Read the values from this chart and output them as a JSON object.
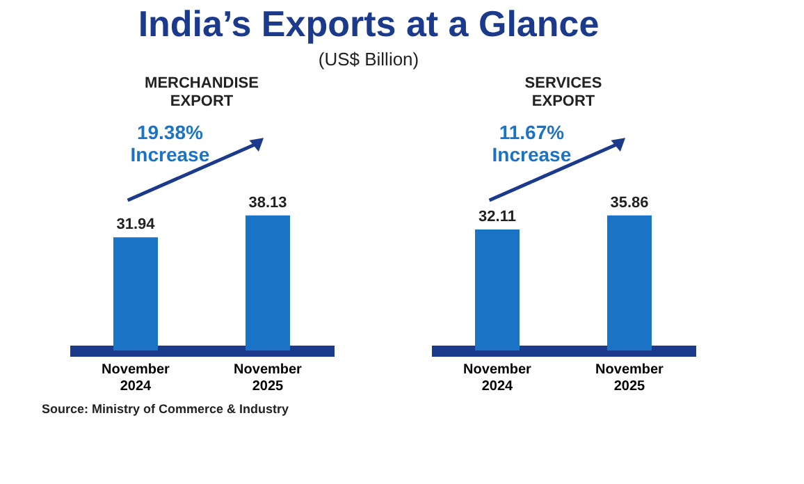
{
  "chart_data": [
    {
      "type": "other",
      "title": "India’s Exports at a Glance",
      "subtitle": "(US$ Billion)",
      "annotations": [
        "Source: Ministry of Commerce & Industry"
      ]
    },
    {
      "type": "bar",
      "title": "MERCHANDISE EXPORT",
      "categories": [
        "November 2024",
        "November 2025"
      ],
      "values": [
        31.94,
        38.13
      ],
      "color": "#1a73c4",
      "data_labels": true,
      "annotations": [
        "19.38% Increase"
      ]
    },
    {
      "type": "bar",
      "title": "SERVICES EXPORT",
      "categories": [
        "November 2024",
        "November 2025"
      ],
      "values": [
        32.11,
        35.86
      ],
      "color": "#1a73c4",
      "data_labels": true,
      "annotations": [
        "11.67% Increase"
      ]
    }
  ]
}
